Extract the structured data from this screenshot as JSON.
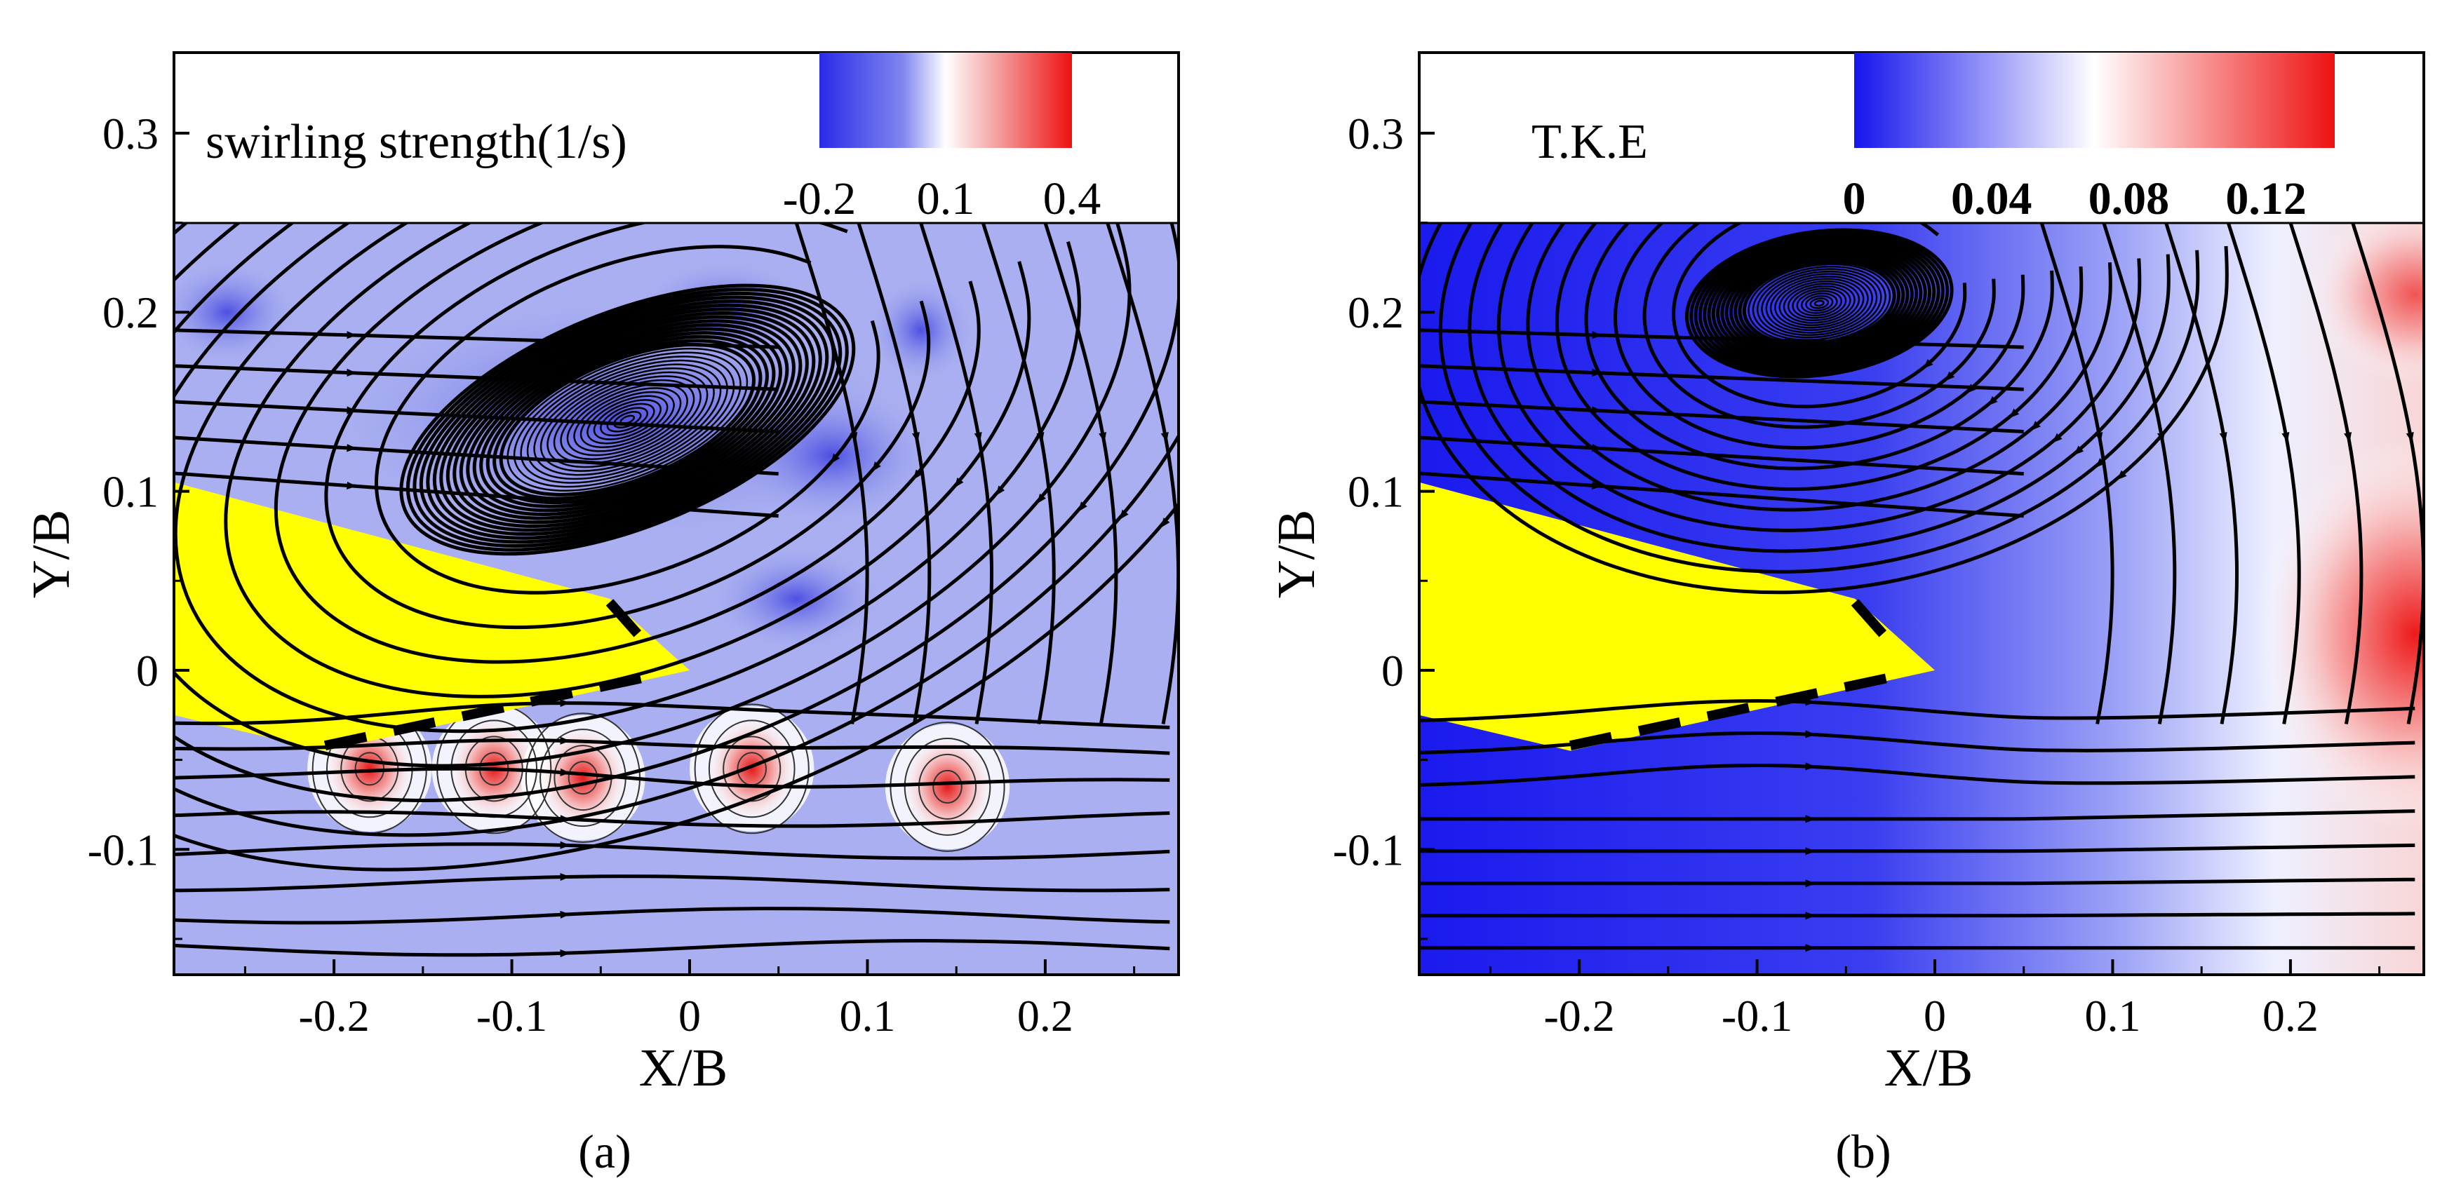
{
  "chart_data": [
    {
      "panel": "(a)",
      "type": "contour",
      "xlabel": "X/B",
      "ylabel": "Y/B",
      "xlim": [
        -0.29,
        0.275
      ],
      "ylim": [
        -0.17,
        0.345
      ],
      "xticks": [
        -0.2,
        -0.1,
        0,
        0.1,
        0.2
      ],
      "xtick_labels": [
        "-0.2",
        "-0.1",
        "0",
        "0.1",
        "0.2"
      ],
      "yticks": [
        -0.1,
        0,
        0.1,
        0.2,
        0.3
      ],
      "ytick_labels": [
        "-0.1",
        "0",
        "0.1",
        "0.2",
        "0.3"
      ],
      "field_top": 0.25,
      "legend": {
        "title": "swirling strength(1/s)",
        "range": [
          -0.2,
          0.4
        ],
        "tick_values": [
          -0.2,
          0.1,
          0.4
        ],
        "tick_labels": [
          "-0.2",
          "0.1",
          "0.4"
        ],
        "colors": [
          "#2a2ae8",
          "#ffffff",
          "#ee1111"
        ]
      },
      "vortex_center": [
        -0.035,
        0.14
      ],
      "vortex_radii": [
        0.135,
        0.06
      ],
      "body_polygon": [
        [
          -0.29,
          0.105
        ],
        [
          -0.29,
          -0.025
        ],
        [
          -0.205,
          -0.045
        ],
        [
          0.0,
          0.0
        ],
        [
          -0.045,
          0.04
        ]
      ],
      "hotspots": [
        [
          -0.18,
          -0.055
        ],
        [
          -0.11,
          -0.055
        ],
        [
          -0.06,
          -0.06
        ],
        [
          0.035,
          -0.055
        ],
        [
          0.145,
          -0.065
        ]
      ],
      "background_color": "#a9aff0",
      "body_color": "#ffff00",
      "streamline_color": "#000000"
    },
    {
      "panel": "(b)",
      "type": "contour",
      "xlabel": "X/B",
      "ylabel": "Y/B",
      "xlim": [
        -0.29,
        0.275
      ],
      "ylim": [
        -0.17,
        0.345
      ],
      "xticks": [
        -0.2,
        -0.1,
        0,
        0.1,
        0.2
      ],
      "xtick_labels": [
        "-0.2",
        "-0.1",
        "0",
        "0.1",
        "0.2"
      ],
      "yticks": [
        -0.1,
        0,
        0.1,
        0.2,
        0.3
      ],
      "ytick_labels": [
        "-0.1",
        "0",
        "0.1",
        "0.2",
        "0.3"
      ],
      "field_top": 0.25,
      "legend": {
        "title": "T.K.E",
        "range": [
          0,
          0.14
        ],
        "tick_values": [
          0,
          0.04,
          0.08,
          0.12
        ],
        "tick_labels": [
          "0",
          "0.04",
          "0.08",
          "0.12"
        ],
        "colors": [
          "#1515ee",
          "#ffffff",
          "#ee1111"
        ]
      },
      "vortex_center": [
        -0.065,
        0.205
      ],
      "vortex_radii": [
        0.075,
        0.04
      ],
      "body_polygon": [
        [
          -0.29,
          0.105
        ],
        [
          -0.29,
          -0.025
        ],
        [
          -0.205,
          -0.045
        ],
        [
          0.0,
          0.0
        ],
        [
          -0.045,
          0.04
        ]
      ],
      "background_color": "#1a1aee",
      "body_color": "#ffff00",
      "streamline_color": "#000000"
    }
  ]
}
